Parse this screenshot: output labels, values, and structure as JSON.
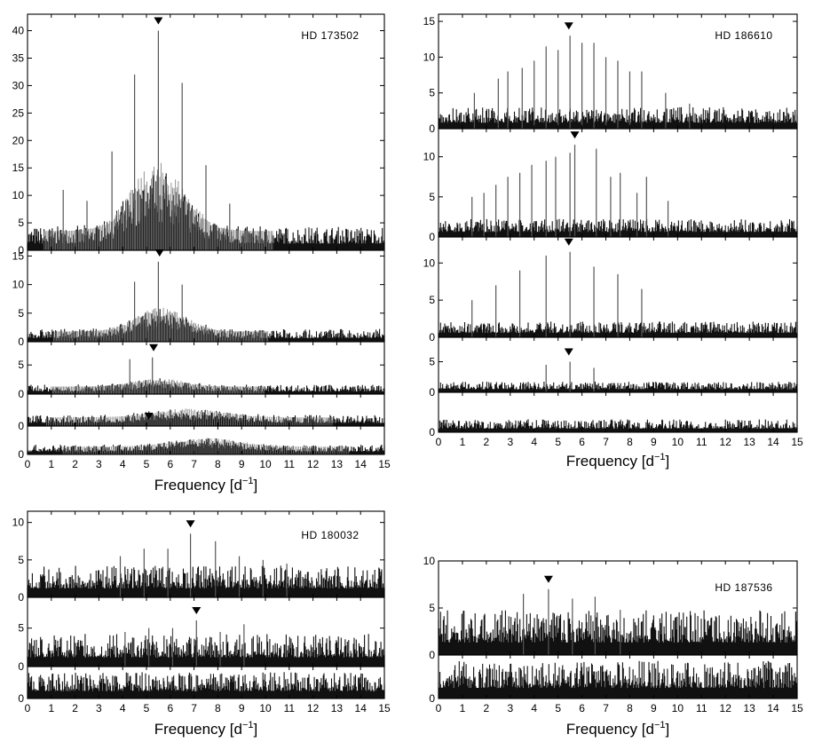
{
  "figure": {
    "xlabel_main": "Frequency [d",
    "xlabel_exp": "−1",
    "xlabel_close": "]"
  },
  "chart_data": [
    {
      "type": "line",
      "star": "HD 173502",
      "xlim": [
        0,
        15
      ],
      "xticks": [
        0,
        1,
        2,
        3,
        4,
        5,
        6,
        7,
        8,
        9,
        10,
        11,
        12,
        13,
        14,
        15
      ],
      "xlabel": "Frequency [d−1]",
      "panels": [
        {
          "ylim": [
            0,
            43
          ],
          "yticks": [
            0,
            5,
            10,
            15,
            20,
            25,
            30,
            35,
            40
          ],
          "noise": 3.5,
          "hump": 9,
          "hump_center": 5.5,
          "hump_width": 1.6,
          "marker": 5.5,
          "peaks": [
            [
              1.5,
              11
            ],
            [
              3.55,
              18
            ],
            [
              4.5,
              32
            ],
            [
              5.5,
              40
            ],
            [
              6.5,
              30.5
            ],
            [
              7.5,
              15.5
            ],
            [
              2.5,
              9
            ],
            [
              8.5,
              8.5
            ]
          ]
        },
        {
          "ylim": [
            0,
            16
          ],
          "yticks": [
            0,
            5,
            10,
            15
          ],
          "noise": 1.8,
          "hump": 3,
          "hump_center": 5.6,
          "hump_width": 1.5,
          "marker": 5.55,
          "peaks": [
            [
              4.5,
              10.5
            ],
            [
              5.5,
              14
            ],
            [
              6.5,
              10
            ]
          ]
        },
        {
          "ylim": [
            0,
            9
          ],
          "yticks": [
            0,
            5
          ],
          "noise": 1.3,
          "hump": 1,
          "hump_center": 5.5,
          "hump_width": 1.5,
          "marker": 5.3,
          "peaks": [
            [
              4.3,
              6
            ],
            [
              5.25,
              6.3
            ]
          ]
        },
        {
          "ylim": [
            0,
            4
          ],
          "yticks": [
            0
          ],
          "noise": 1.1,
          "hump": 0.8,
          "hump_center": 6.8,
          "hump_width": 2,
          "marker": 5.1,
          "peaks": []
        },
        {
          "ylim": [
            0,
            4
          ],
          "yticks": [
            0
          ],
          "noise": 1.1,
          "hump": 0.9,
          "hump_center": 7.5,
          "hump_width": 2,
          "marker": null,
          "peaks": []
        }
      ]
    },
    {
      "type": "line",
      "star": "HD 186610",
      "xlim": [
        0,
        15
      ],
      "xticks": [
        0,
        1,
        2,
        3,
        4,
        5,
        6,
        7,
        8,
        9,
        10,
        11,
        12,
        13,
        14,
        15
      ],
      "xlabel": "Frequency [d−1]",
      "panels": [
        {
          "ylim": [
            0,
            16
          ],
          "yticks": [
            0,
            5,
            10,
            15
          ],
          "noise": 2.4,
          "hump": 0,
          "hump_center": 7,
          "hump_width": 2,
          "marker": 5.45,
          "peaks": [
            [
              1.5,
              5
            ],
            [
              2.5,
              7
            ],
            [
              3.5,
              8.5
            ],
            [
              4.5,
              11.5
            ],
            [
              5.5,
              13
            ],
            [
              6.5,
              12
            ],
            [
              7.5,
              9.5
            ],
            [
              8.5,
              8
            ],
            [
              9.5,
              5
            ],
            [
              10.5,
              3.5
            ],
            [
              2.9,
              8
            ],
            [
              4,
              9.5
            ],
            [
              5,
              11
            ],
            [
              6,
              12
            ],
            [
              7,
              10
            ],
            [
              8,
              8
            ]
          ]
        },
        {
          "ylim": [
            0,
            13.5
          ],
          "yticks": [
            0,
            5,
            10
          ],
          "noise": 1.8,
          "hump": 0,
          "hump_center": 7,
          "hump_width": 2,
          "marker": 5.7,
          "peaks": [
            [
              1.4,
              5
            ],
            [
              1.9,
              5.5
            ],
            [
              2.4,
              6.5
            ],
            [
              2.9,
              7.5
            ],
            [
              3.4,
              8
            ],
            [
              3.9,
              9
            ],
            [
              4.5,
              9.5
            ],
            [
              4.9,
              10
            ],
            [
              5.5,
              10.5
            ],
            [
              5.7,
              11.5
            ],
            [
              6.6,
              11
            ],
            [
              7.2,
              7.5
            ],
            [
              7.6,
              8
            ],
            [
              8.3,
              5.5
            ],
            [
              8.7,
              7.5
            ],
            [
              9.6,
              4.5
            ]
          ]
        },
        {
          "ylim": [
            0,
            13.5
          ],
          "yticks": [
            0,
            5,
            10
          ],
          "noise": 1.7,
          "hump": 0,
          "hump_center": 7,
          "hump_width": 2,
          "marker": 5.45,
          "peaks": [
            [
              1.4,
              5
            ],
            [
              2.4,
              7
            ],
            [
              3.4,
              9
            ],
            [
              4.5,
              11
            ],
            [
              5.5,
              11.5
            ],
            [
              6.5,
              9.5
            ],
            [
              7.5,
              8.5
            ],
            [
              8.5,
              6.5
            ]
          ]
        },
        {
          "ylim": [
            0,
            9
          ],
          "yticks": [
            0,
            5
          ],
          "noise": 1.4,
          "hump": 0,
          "hump_center": 7,
          "hump_width": 2,
          "marker": 5.45,
          "peaks": [
            [
              4.5,
              4.5
            ],
            [
              5.5,
              5
            ],
            [
              6.5,
              4
            ]
          ]
        },
        {
          "ylim": [
            0,
            5
          ],
          "yticks": [
            0
          ],
          "noise": 1.3,
          "hump": 0,
          "hump_center": 7,
          "hump_width": 2,
          "marker": null,
          "peaks": []
        }
      ]
    },
    {
      "type": "line",
      "star": "HD 180032",
      "xlim": [
        0,
        15
      ],
      "xticks": [
        0,
        1,
        2,
        3,
        4,
        5,
        6,
        7,
        8,
        9,
        10,
        11,
        12,
        13,
        14,
        15
      ],
      "xlabel": "Frequency [d−1]",
      "panels": [
        {
          "ylim": [
            0,
            11.5
          ],
          "yticks": [
            0,
            5,
            10
          ],
          "noise": 3.4,
          "hump": 0,
          "hump_center": 7,
          "hump_width": 2,
          "marker": 6.85,
          "peaks": [
            [
              3.9,
              5.5
            ],
            [
              4.9,
              6.5
            ],
            [
              5.9,
              6.5
            ],
            [
              6.85,
              8.5
            ],
            [
              7.9,
              7.5
            ],
            [
              8.9,
              5.5
            ],
            [
              9.9,
              5
            ],
            [
              10.9,
              4.5
            ]
          ]
        },
        {
          "ylim": [
            0,
            9
          ],
          "yticks": [
            0,
            5
          ],
          "noise": 3.4,
          "hump": 0,
          "hump_center": 7,
          "hump_width": 2,
          "marker": 7.1,
          "peaks": [
            [
              4.1,
              4.5
            ],
            [
              5.1,
              5
            ],
            [
              6.1,
              5
            ],
            [
              7.1,
              6
            ],
            [
              8.1,
              4.5
            ],
            [
              9.1,
              5.5
            ]
          ]
        },
        {
          "ylim": [
            0,
            5
          ],
          "yticks": [
            0
          ],
          "noise": 3.3,
          "hump": 0,
          "hump_center": 7,
          "hump_width": 2,
          "marker": null,
          "peaks": []
        }
      ]
    },
    {
      "type": "line",
      "star": "HD 187536",
      "xlim": [
        0,
        15
      ],
      "xticks": [
        0,
        1,
        2,
        3,
        4,
        5,
        6,
        7,
        8,
        9,
        10,
        11,
        12,
        13,
        14,
        15
      ],
      "xlabel": "Frequency [d−1]",
      "panels": [
        {
          "ylim": [
            0,
            10
          ],
          "yticks": [
            0,
            5,
            10
          ],
          "noise": 3.8,
          "hump": 0,
          "hump_center": 7,
          "hump_width": 2,
          "marker": 4.6,
          "peaks": [
            [
              3.55,
              6.5
            ],
            [
              4.6,
              7
            ],
            [
              5.6,
              6
            ],
            [
              6.55,
              6.2
            ],
            [
              7.6,
              4.8
            ]
          ]
        },
        {
          "ylim": [
            0,
            5.5
          ],
          "yticks": [
            0
          ],
          "noise": 3.8,
          "hump": 0,
          "hump_center": 7,
          "hump_width": 2,
          "marker": null,
          "peaks": []
        }
      ]
    }
  ]
}
